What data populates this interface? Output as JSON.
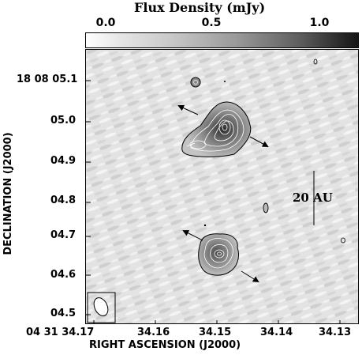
{
  "colorbar": {
    "title": "Flux Density (mJy)",
    "ticks": [
      {
        "label": "0.0",
        "value": 0.0
      },
      {
        "label": "0.5",
        "value": 0.5
      },
      {
        "label": "1.0",
        "value": 1.0
      }
    ]
  },
  "axes": {
    "ylabel": "DECLINATION (J2000)",
    "xlabel": "RIGHT ASCENSION (J2000)",
    "y_ticks": [
      "18 08 05.1",
      "05.0",
      "04.9",
      "04.8",
      "04.7",
      "04.6",
      "04.5"
    ],
    "x_ticks": [
      "04 31 34.17",
      "34.16",
      "34.15",
      "34.14",
      "34.13"
    ]
  },
  "annotations": {
    "scale_bar": "20 AU"
  }
}
